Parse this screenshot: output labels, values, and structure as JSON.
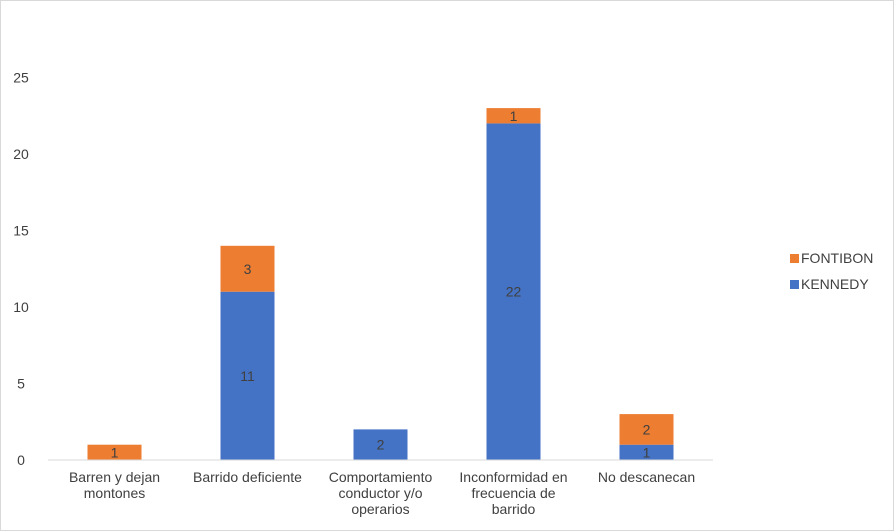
{
  "chart_data": {
    "type": "bar",
    "stacked": true,
    "title": "",
    "xlabel": "",
    "ylabel": "",
    "categories": [
      "Barren y dejan montones",
      "Barrido deficiente",
      "Comportamiento conductor y/o operarios",
      "Inconformidad en frecuencia de barrido",
      "No descanecan"
    ],
    "category_label_lines": [
      [
        "Barren y dejan",
        "montones"
      ],
      [
        "Barrido deficiente"
      ],
      [
        "Comportamiento",
        "conductor y/o",
        "operarios"
      ],
      [
        "Inconformidad en",
        "frecuencia de",
        "barrido"
      ],
      [
        "No descanecan"
      ]
    ],
    "series": [
      {
        "name": "KENNEDY",
        "values": [
          0,
          11,
          2,
          22,
          1
        ],
        "labels": [
          "",
          "11",
          "2",
          "22",
          "1"
        ],
        "color": "#4472c4"
      },
      {
        "name": "FONTIBON",
        "values": [
          1,
          3,
          0,
          1,
          2
        ],
        "labels": [
          "1",
          "3",
          "",
          "1",
          "2"
        ],
        "color": "#ed7d31"
      }
    ],
    "ylim": [
      0,
      30
    ],
    "yticks": [
      "0",
      "5",
      "10",
      "15",
      "20",
      "25"
    ],
    "ytick_values": [
      0,
      5,
      10,
      15,
      20,
      25
    ],
    "legend": {
      "position": "right",
      "entries": [
        "FONTIBON",
        "KENNEDY"
      ]
    },
    "grid": false
  }
}
